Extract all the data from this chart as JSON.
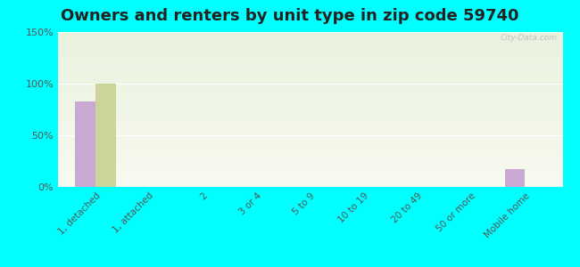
{
  "title": "Owners and renters by unit type in zip code 59740",
  "categories": [
    "1, detached",
    "1, attached",
    "2",
    "3 or 4",
    "5 to 9",
    "10 to 19",
    "20 to 49",
    "50 or more",
    "Mobile home"
  ],
  "owner_values": [
    83,
    0,
    0,
    0,
    0,
    0,
    0,
    0,
    17
  ],
  "renter_values": [
    100,
    0,
    0,
    0,
    0,
    0,
    0,
    0,
    0
  ],
  "owner_color": "#c9a8d4",
  "renter_color": "#ccd49a",
  "background_color": "#00ffff",
  "grad_top": "#eaf2de",
  "grad_bottom": "#f7faf0",
  "ylim": [
    0,
    150
  ],
  "yticks": [
    0,
    50,
    100,
    150
  ],
  "ytick_labels": [
    "0%",
    "50%",
    "100%",
    "150%"
  ],
  "title_fontsize": 13,
  "watermark": "City-Data.com",
  "bar_width": 0.38
}
